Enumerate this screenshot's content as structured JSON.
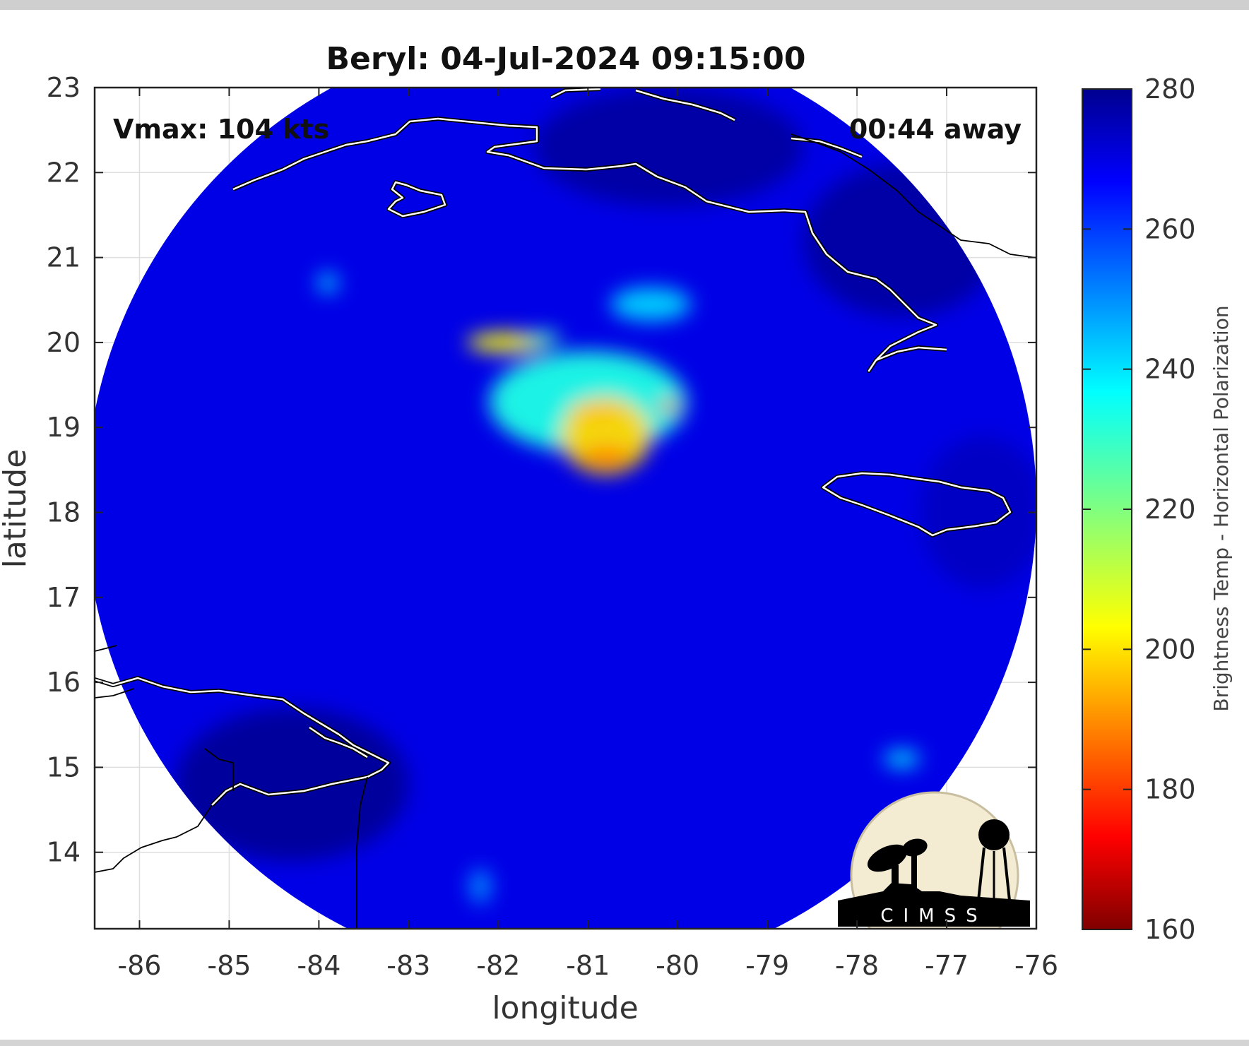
{
  "chart_data": {
    "type": "heatmap",
    "title": "Beryl: 04-Jul-2024 09:15:00",
    "xlabel": "longitude",
    "ylabel": "latitude",
    "xlim": [
      -86.5,
      -76
    ],
    "ylim": [
      13.1,
      23
    ],
    "x_ticks": [
      -86,
      -85,
      -84,
      -83,
      -82,
      -81,
      -80,
      -79,
      -78,
      -77,
      -76
    ],
    "y_ticks": [
      14,
      15,
      16,
      17,
      18,
      19,
      20,
      21,
      22,
      23
    ],
    "grid": true,
    "annotations": {
      "left": "Vmax: 104 kts",
      "right": "00:44 away"
    },
    "colorbar": {
      "label": "Brightness Temp - Horizontal Polarization",
      "range": [
        160,
        280
      ],
      "ticks": [
        160,
        180,
        200,
        220,
        240,
        260,
        280
      ],
      "colormap": "jet"
    },
    "background_value": 268,
    "swath_center": [
      -81.3,
      18.1
    ],
    "swath_radius_deg": 5.3,
    "features": [
      {
        "lon": -80.8,
        "lat": 18.9,
        "value": 200,
        "spread_lon": 0.5,
        "spread_lat": 0.45
      },
      {
        "lon": -80.8,
        "lat": 18.65,
        "value": 190,
        "spread_lon": 0.28,
        "spread_lat": 0.12
      },
      {
        "lon": -80.9,
        "lat": 19.2,
        "value": 198,
        "spread_lon": 0.3,
        "spread_lat": 0.12
      },
      {
        "lon": -80.1,
        "lat": 19.25,
        "value": 178,
        "spread_lon": 0.1,
        "spread_lat": 0.08
      },
      {
        "lon": -81.0,
        "lat": 19.3,
        "value": 232,
        "spread_lon": 1.1,
        "spread_lat": 0.6
      },
      {
        "lon": -81.9,
        "lat": 20.0,
        "value": 205,
        "spread_lon": 0.45,
        "spread_lat": 0.12
      },
      {
        "lon": -81.5,
        "lat": 20.05,
        "value": 228,
        "spread_lon": 0.2,
        "spread_lat": 0.08
      },
      {
        "lon": -80.3,
        "lat": 20.45,
        "value": 240,
        "spread_lon": 0.45,
        "spread_lat": 0.2
      },
      {
        "lon": -83.9,
        "lat": 20.7,
        "value": 242,
        "spread_lon": 0.12,
        "spread_lat": 0.12
      },
      {
        "lon": -77.5,
        "lat": 15.1,
        "value": 238,
        "spread_lon": 0.2,
        "spread_lat": 0.1
      },
      {
        "lon": -82.2,
        "lat": 13.6,
        "value": 248,
        "spread_lon": 0.12,
        "spread_lat": 0.2
      },
      {
        "lon": -80.1,
        "lat": 22.3,
        "value": 276,
        "spread_lon": 1.5,
        "spread_lat": 0.7
      },
      {
        "lon": -77.5,
        "lat": 21.2,
        "value": 276,
        "spread_lon": 1.1,
        "spread_lat": 0.9
      },
      {
        "lon": -84.3,
        "lat": 14.8,
        "value": 277,
        "spread_lon": 1.3,
        "spread_lat": 0.9
      },
      {
        "lon": -76.6,
        "lat": 18.0,
        "value": 272,
        "spread_lon": 0.7,
        "spread_lat": 0.9
      }
    ],
    "logo": "CIMSS"
  }
}
